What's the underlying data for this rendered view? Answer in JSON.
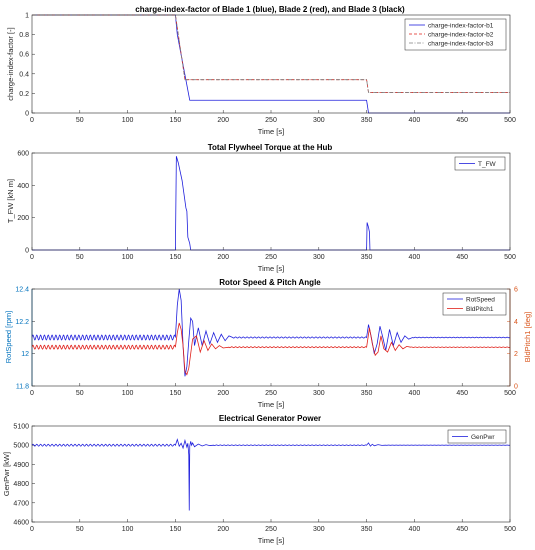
{
  "chart_data": [
    {
      "type": "line",
      "title": "charge-index-factor of Blade 1 (blue), Blade 2 (red), and Blade 3 (black)",
      "xlabel": "Time [s]",
      "ylabel": "charge-index-factor [-]",
      "xlim": [
        0,
        500
      ],
      "ylim": [
        0,
        1
      ],
      "xticks": [
        "0",
        "50",
        "100",
        "150",
        "200",
        "250",
        "300",
        "350",
        "400",
        "450",
        "500"
      ],
      "yticks": [
        "0",
        "0.2",
        "0.4",
        "0.6",
        "0.8",
        "1"
      ],
      "legend": "top-right",
      "series": [
        {
          "name": "charge-index-factor-b1",
          "color": "#1f1fdc",
          "dash": "solid",
          "x": [
            0,
            150,
            152,
            165,
            348,
            350,
            352,
            500
          ],
          "y": [
            1,
            1,
            0.8,
            0.13,
            0.13,
            0.13,
            0,
            0
          ]
        },
        {
          "name": "charge-index-factor-b2",
          "color": "#e0201a",
          "dash": "dashed",
          "x": [
            0,
            150,
            160,
            350,
            352,
            500
          ],
          "y": [
            1,
            1,
            0.34,
            0.34,
            0.21,
            0.21
          ]
        },
        {
          "name": "charge-index-factor-b3",
          "color": "#808080",
          "dash": "dashdot",
          "x": [
            0,
            150,
            160,
            350,
            352,
            500
          ],
          "y": [
            1,
            1,
            0.34,
            0.34,
            0.21,
            0.21
          ]
        }
      ]
    },
    {
      "type": "line",
      "title": "Total Flywheel Torque at the Hub",
      "xlabel": "Time [s]",
      "ylabel": "T_FW [kN m]",
      "xlim": [
        0,
        500
      ],
      "ylim": [
        0,
        600
      ],
      "xticks": [
        "0",
        "50",
        "100",
        "150",
        "200",
        "250",
        "300",
        "350",
        "400",
        "450",
        "500"
      ],
      "yticks": [
        "0",
        "200",
        "400",
        "600"
      ],
      "legend": "top-right",
      "series": [
        {
          "name": "T_FW",
          "color": "#1f1fdc",
          "x": [
            0,
            150,
            151,
            153,
            157,
            161,
            162,
            163,
            164,
            165,
            166,
            350,
            350.5,
            351,
            352,
            353,
            353.5,
            500
          ],
          "y": [
            0,
            0,
            580,
            540,
            430,
            260,
            240,
            80,
            60,
            40,
            0,
            0,
            170,
            160,
            140,
            110,
            0,
            0
          ]
        }
      ]
    },
    {
      "type": "line",
      "title": "Rotor Speed & Pitch Angle",
      "xlabel": "Time [s]",
      "ylabel": "RotSpeed [rpm]",
      "ylabel_right": "BldPitch1 [deg]",
      "xlim": [
        0,
        500
      ],
      "ylim": [
        11.8,
        12.4
      ],
      "ylim_right": [
        0,
        6
      ],
      "xticks": [
        "0",
        "50",
        "100",
        "150",
        "200",
        "250",
        "300",
        "350",
        "400",
        "450",
        "500"
      ],
      "yticks": [
        "11.8",
        "12",
        "12.2",
        "12.4"
      ],
      "yticks_right": [
        "0",
        "2",
        "4",
        "6"
      ],
      "left_axis_color": "#0072bd",
      "right_axis_color": "#d95319",
      "legend": "top-right",
      "series": [
        {
          "name": "RotSpeed",
          "color": "#1f1fdc",
          "axis": "left",
          "baseline": 12.1,
          "osc_amp": 0.015,
          "osc_period": 4,
          "x": [
            150,
            152,
            154,
            156,
            158,
            160,
            162,
            164,
            166,
            168,
            170,
            174,
            178,
            182,
            186,
            190,
            194,
            198,
            202,
            206,
            210,
            350,
            352,
            355,
            358,
            361,
            364,
            367,
            370,
            374,
            378,
            382,
            386,
            390,
            394,
            398
          ],
          "y": [
            12.1,
            12.3,
            12.4,
            12.33,
            12.05,
            11.86,
            11.92,
            12.08,
            12.22,
            12.2,
            12.05,
            12.16,
            12.05,
            12.14,
            12.06,
            12.13,
            12.07,
            12.12,
            12.08,
            12.11,
            12.1,
            12.1,
            12.18,
            12.1,
            12.0,
            12.06,
            12.17,
            12.1,
            12.02,
            12.15,
            12.05,
            12.13,
            12.07,
            12.11,
            12.09,
            12.1
          ]
        },
        {
          "name": "BldPitch1",
          "color": "#e0201a",
          "axis": "right",
          "baseline": 2.4,
          "osc_amp": 0.12,
          "osc_period": 4,
          "x": [
            150,
            152,
            154,
            156,
            158,
            160,
            162,
            164,
            166,
            168,
            172,
            176,
            180,
            184,
            188,
            192,
            196,
            200,
            206,
            350,
            353,
            356,
            359,
            362,
            365,
            368,
            372,
            376,
            380,
            384,
            388,
            392,
            396
          ],
          "y": [
            2.4,
            3.3,
            3.9,
            3.5,
            2.5,
            0.9,
            0.7,
            1.1,
            2.0,
            2.9,
            3.1,
            2.1,
            2.8,
            2.2,
            2.6,
            2.3,
            2.5,
            2.35,
            2.4,
            2.4,
            3.6,
            2.6,
            1.9,
            2.1,
            3.1,
            2.3,
            2.1,
            2.7,
            2.2,
            2.55,
            2.3,
            2.45,
            2.4
          ]
        }
      ]
    },
    {
      "type": "line",
      "title": "Electrical Generator Power",
      "xlabel": "Time [s]",
      "ylabel": "GenPwr [kW]",
      "xlim": [
        0,
        500
      ],
      "ylim": [
        4600,
        5100
      ],
      "xticks": [
        "0",
        "50",
        "100",
        "150",
        "200",
        "250",
        "300",
        "350",
        "400",
        "450",
        "500"
      ],
      "yticks": [
        "4600",
        "4700",
        "4800",
        "4900",
        "5000",
        "5100"
      ],
      "legend": "top-right",
      "series": [
        {
          "name": "GenPwr",
          "color": "#1f1fdc",
          "baseline": 5000,
          "osc_amp": 5,
          "osc_period": 4,
          "x": [
            150,
            152,
            154,
            156,
            158,
            160,
            162,
            163,
            164,
            164.5,
            165,
            166,
            167,
            168,
            170,
            174,
            178,
            182,
            186,
            190,
            350,
            352,
            354,
            356,
            358,
            362,
            366,
            370
          ],
          "y": [
            5000,
            5030,
            4995,
            5010,
            4985,
            5025,
            4990,
            5010,
            4950,
            4660,
            4995,
            5020,
            5000,
            5012,
            4992,
            5006,
            4996,
            5003,
            4998,
            5000,
            5000,
            5012,
            4995,
            5005,
            4997,
            5003,
            4999,
            5000
          ]
        }
      ]
    }
  ]
}
